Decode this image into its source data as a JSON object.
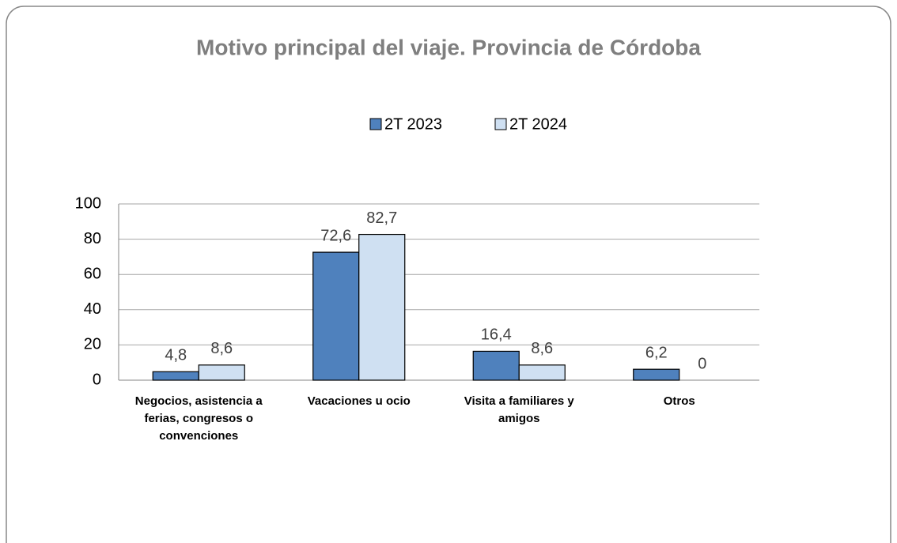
{
  "chart_data": {
    "type": "bar",
    "title": "Motivo principal del viaje. Provincia de Córdoba",
    "categories": [
      "Negocios, asistencia a ferias, congresos o convenciones",
      "Vacaciones u ocio",
      "Visita a familiares y amigos",
      "Otros"
    ],
    "series": [
      {
        "name": "2T 2023",
        "color": "#4f81bd",
        "values": [
          4.8,
          72.6,
          16.4,
          6.2
        ],
        "value_labels": [
          "4,8",
          "72,6",
          "16,4",
          "6,2"
        ]
      },
      {
        "name": "2T 2024",
        "color": "#cfe0f2",
        "values": [
          8.6,
          82.7,
          8.6,
          0
        ],
        "value_labels": [
          "8,6",
          "82,7",
          "8,6",
          "0"
        ]
      }
    ],
    "ylim": [
      0,
      100
    ],
    "yticks": [
      0,
      20,
      40,
      60,
      80,
      100
    ],
    "grid": true,
    "legend": "top"
  }
}
